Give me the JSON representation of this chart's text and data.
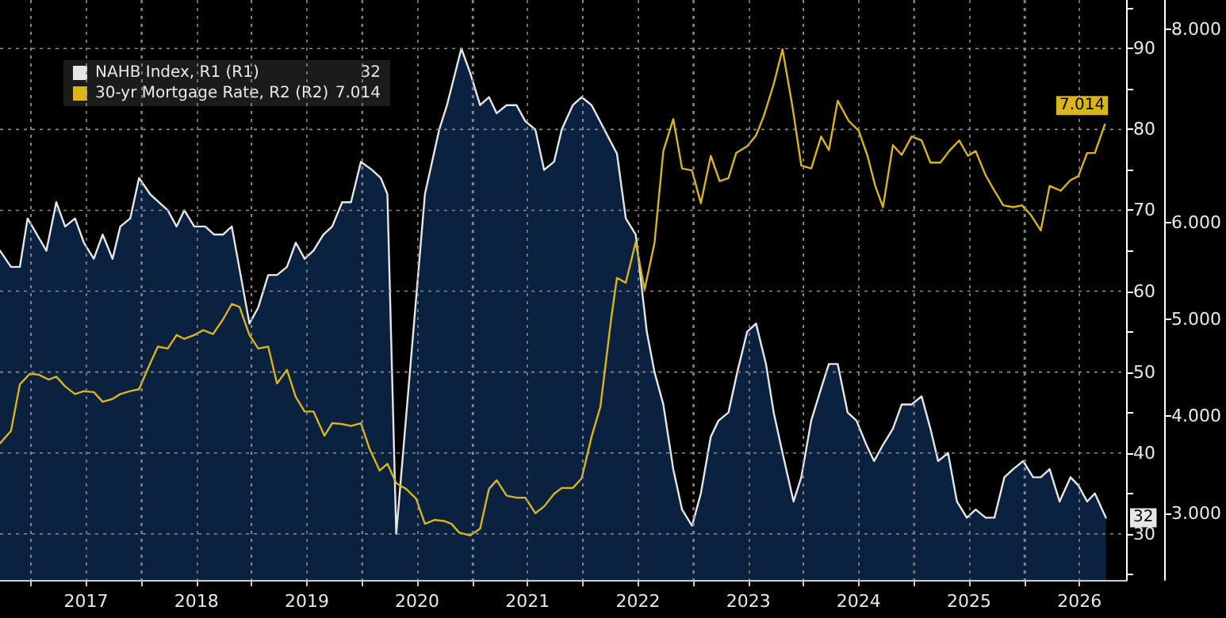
{
  "chart_data": {
    "type": "line",
    "legend": "top left",
    "grid": true,
    "marker": "none",
    "line_style": "solid",
    "xlim": [
      2016.72,
      2026.93
    ],
    "xticks": [
      {
        "value": 2017,
        "label": null
      },
      {
        "value": 2017.5,
        "label": "2017"
      },
      {
        "value": 2018,
        "label": null
      },
      {
        "value": 2018.5,
        "label": "2018"
      },
      {
        "value": 2019,
        "label": null
      },
      {
        "value": 2019.5,
        "label": "2019"
      },
      {
        "value": 2020,
        "label": null
      },
      {
        "value": 2020.5,
        "label": "2020"
      },
      {
        "value": 2021,
        "label": null
      },
      {
        "value": 2021.5,
        "label": "2021"
      },
      {
        "value": 2022,
        "label": null
      },
      {
        "value": 2022.5,
        "label": "2022"
      },
      {
        "value": 2023,
        "label": null
      },
      {
        "value": 2023.5,
        "label": "2023"
      },
      {
        "value": 2024,
        "label": null
      },
      {
        "value": 2024.5,
        "label": "2024"
      },
      {
        "value": 2025,
        "label": null
      },
      {
        "value": 2025.5,
        "label": "2025"
      },
      {
        "value": 2026,
        "label": null
      },
      {
        "value": 2026.5,
        "label": "2026"
      }
    ],
    "ylim": [
      24.3,
      96
    ],
    "yticks": [
      {
        "value": 25,
        "label": null
      },
      30,
      {
        "value": 35,
        "label": null
      },
      40,
      {
        "value": 45,
        "label": null
      },
      50,
      {
        "value": 55,
        "label": null
      },
      60,
      {
        "value": 65,
        "label": null
      },
      70,
      {
        "value": 75,
        "label": null
      },
      80,
      {
        "value": 85,
        "label": null
      },
      90,
      {
        "value": 95,
        "label": null
      }
    ],
    "y2lim": [
      2.31,
      8.3
    ],
    "y2ticks": [
      {
        "value": 3,
        "label": "3.000"
      },
      {
        "value": 4,
        "label": "4.000"
      },
      {
        "value": 5,
        "label": "5.000"
      },
      {
        "value": 6,
        "label": "6.000"
      },
      {
        "value": 8,
        "label": "8.000"
      }
    ],
    "series": [
      {
        "name": "NAHB Index, R1 (R1)",
        "type": "area",
        "color": "#e6e6e6",
        "value_labels": [
          null,
          null,
          null,
          null,
          null,
          null,
          null,
          null,
          null,
          null,
          null,
          null,
          null,
          null,
          null,
          null,
          null,
          null,
          null,
          null,
          null,
          null,
          null,
          null,
          null,
          null,
          null,
          null,
          null,
          null,
          null,
          null,
          null,
          null,
          null,
          null,
          null,
          null,
          null,
          null,
          null,
          null,
          null,
          null,
          null,
          null,
          null,
          null,
          null,
          null,
          null,
          null,
          null,
          null,
          null,
          null,
          null,
          null,
          null,
          null,
          null,
          null,
          null,
          null,
          null,
          null,
          null,
          null,
          null,
          null,
          null,
          null,
          null,
          null,
          null,
          null,
          null,
          null,
          null,
          null,
          null,
          null,
          null,
          null,
          null,
          null,
          null,
          null,
          null,
          null,
          null,
          null,
          null,
          null,
          null,
          null,
          null,
          null,
          null,
          null,
          null,
          null,
          null,
          null,
          null,
          null,
          null,
          null,
          null,
          null,
          null,
          null,
          "32"
        ],
        "x": [
          2016.72,
          2016.82,
          2016.9,
          2016.97,
          2017.14,
          2017.23,
          2017.31,
          2017.4,
          2017.48,
          2017.57,
          2017.65,
          2017.74,
          2017.81,
          2017.9,
          2017.98,
          2018.08,
          2018.24,
          2018.32,
          2018.39,
          2018.48,
          2018.58,
          2018.66,
          2018.74,
          2018.82,
          2018.98,
          2019.06,
          2019.15,
          2019.23,
          2019.32,
          2019.4,
          2019.48,
          2019.56,
          2019.65,
          2019.73,
          2019.82,
          2019.9,
          2019.99,
          2020.09,
          2020.17,
          2020.23,
          2020.31,
          2020.57,
          2020.7,
          2020.77,
          2020.9,
          2020.98,
          2021.07,
          2021.15,
          2021.22,
          2021.31,
          2021.4,
          2021.48,
          2021.57,
          2021.65,
          2021.74,
          2021.81,
          2021.91,
          2021.99,
          2022.08,
          2022.31,
          2022.39,
          2022.48,
          2022.58,
          2022.65,
          2022.73,
          2022.82,
          2022.9,
          2022.99,
          2023.07,
          2023.16,
          2023.23,
          2023.32,
          2023.4,
          2023.49,
          2023.57,
          2023.66,
          2023.73,
          2023.81,
          2023.91,
          2023.98,
          2024.07,
          2024.16,
          2024.23,
          2024.31,
          2024.4,
          2024.48,
          2024.57,
          2024.64,
          2024.72,
          2024.81,
          2024.89,
          2024.98,
          2025.07,
          2025.15,
          2025.22,
          2025.31,
          2025.39,
          2025.48,
          2025.56,
          2025.65,
          2025.73,
          2025.82,
          2025.9,
          2025.99,
          2026.08,
          2026.15,
          2026.23,
          2026.32,
          2026.42,
          2026.49,
          2026.57,
          2026.64,
          2026.74
        ],
        "values": [
          65,
          63,
          63,
          69,
          65,
          71,
          68,
          69,
          66,
          64,
          67,
          64,
          68,
          69,
          74,
          72,
          70,
          68,
          70,
          68,
          68,
          67,
          67,
          68,
          56,
          58,
          62,
          62,
          63,
          66,
          64,
          65,
          67,
          68,
          71,
          71,
          76,
          75,
          74,
          72,
          30,
          72,
          80,
          83,
          90,
          87,
          83,
          84,
          82,
          83,
          83,
          81,
          80,
          75,
          76,
          80,
          83,
          84,
          83,
          77,
          69,
          67,
          55,
          50,
          46,
          38,
          33,
          31,
          35,
          42,
          44,
          45,
          50,
          55,
          56,
          51,
          45,
          40,
          34,
          37,
          44,
          48,
          51,
          51,
          45,
          44,
          41,
          39,
          41,
          43,
          46,
          46,
          47,
          43,
          39,
          40,
          34,
          32,
          33,
          32,
          32,
          37,
          38,
          39,
          37,
          37,
          38,
          34,
          37,
          36,
          34,
          35,
          32
        ]
      },
      {
        "name": "30-yr Mortgage Rate, R2 (R2)",
        "axis": "y2",
        "color": "#d9b51c",
        "value_labels": [
          null,
          null,
          null,
          null,
          null,
          null,
          null,
          null,
          null,
          null,
          null,
          null,
          null,
          null,
          null,
          null,
          null,
          null,
          null,
          null,
          null,
          null,
          null,
          null,
          null,
          null,
          null,
          null,
          null,
          null,
          null,
          null,
          null,
          null,
          null,
          null,
          null,
          null,
          null,
          null,
          null,
          null,
          null,
          null,
          null,
          null,
          null,
          null,
          null,
          null,
          null,
          null,
          null,
          null,
          null,
          null,
          null,
          null,
          null,
          null,
          null,
          null,
          null,
          null,
          null,
          null,
          null,
          null,
          null,
          null,
          null,
          null,
          null,
          null,
          null,
          null,
          null,
          null,
          null,
          null,
          null,
          null,
          null,
          null,
          null,
          null,
          null,
          null,
          null,
          null,
          null,
          null,
          null,
          null,
          null,
          null,
          null,
          null,
          null,
          null,
          null,
          null,
          null,
          null,
          null,
          null,
          null,
          null,
          null,
          null,
          null,
          null,
          null,
          null,
          null,
          null,
          null,
          null,
          null,
          null,
          "7.014"
        ],
        "x": [
          2016.72,
          2016.82,
          2016.9,
          2016.99,
          2017.07,
          2017.16,
          2017.23,
          2017.31,
          2017.4,
          2017.48,
          2017.57,
          2017.65,
          2017.74,
          2017.81,
          2017.9,
          2017.98,
          2018.07,
          2018.15,
          2018.24,
          2018.32,
          2018.39,
          2018.48,
          2018.56,
          2018.65,
          2018.74,
          2018.82,
          2018.89,
          2018.98,
          2019.06,
          2019.15,
          2019.23,
          2019.32,
          2019.4,
          2019.48,
          2019.56,
          2019.66,
          2019.73,
          2019.82,
          2019.9,
          2019.99,
          2020.07,
          2020.16,
          2020.23,
          2020.31,
          2020.4,
          2020.49,
          2020.57,
          2020.66,
          2020.74,
          2020.81,
          2020.88,
          2020.98,
          2021.07,
          2021.15,
          2021.22,
          2021.31,
          2021.4,
          2021.48,
          2021.57,
          2021.65,
          2021.74,
          2021.81,
          2021.91,
          2021.99,
          2022.08,
          2022.16,
          2022.26,
          2022.31,
          2022.39,
          2022.48,
          2022.56,
          2022.65,
          2022.73,
          2022.82,
          2022.9,
          2022.99,
          2023.07,
          2023.16,
          2023.24,
          2023.32,
          2023.39,
          2023.49,
          2023.57,
          2023.64,
          2023.73,
          2023.81,
          2023.9,
          2023.98,
          2024.07,
          2024.16,
          2024.23,
          2024.31,
          2024.41,
          2024.5,
          2024.58,
          2024.65,
          2024.72,
          2024.81,
          2024.89,
          2024.98,
          2025.07,
          2025.15,
          2025.24,
          2025.32,
          2025.41,
          2025.49,
          2025.56,
          2025.65,
          2025.73,
          2025.81,
          2025.9,
          2025.98,
          2026.06,
          2026.15,
          2026.23,
          2026.33,
          2026.42,
          2026.49,
          2026.57,
          2026.64,
          2026.73
        ],
        "values": [
          3.72,
          3.85,
          4.33,
          4.44,
          4.43,
          4.38,
          4.41,
          4.31,
          4.23,
          4.26,
          4.25,
          4.15,
          4.18,
          4.23,
          4.26,
          4.28,
          4.52,
          4.72,
          4.7,
          4.84,
          4.8,
          4.84,
          4.89,
          4.85,
          5.0,
          5.16,
          5.13,
          4.84,
          4.7,
          4.72,
          4.34,
          4.48,
          4.2,
          4.05,
          4.05,
          3.8,
          3.93,
          3.92,
          3.9,
          3.93,
          3.66,
          3.44,
          3.51,
          3.31,
          3.25,
          3.15,
          2.89,
          2.93,
          2.92,
          2.89,
          2.8,
          2.77,
          2.84,
          3.25,
          3.34,
          3.18,
          3.16,
          3.16,
          3.0,
          3.07,
          3.2,
          3.26,
          3.26,
          3.36,
          3.79,
          4.1,
          5.03,
          5.43,
          5.38,
          5.8,
          5.31,
          5.79,
          6.74,
          7.07,
          6.56,
          6.54,
          6.2,
          6.69,
          6.43,
          6.46,
          6.72,
          6.79,
          6.9,
          7.1,
          7.43,
          7.79,
          7.2,
          6.59,
          6.56,
          6.89,
          6.75,
          7.26,
          7.05,
          6.95,
          6.69,
          6.38,
          6.16,
          6.8,
          6.7,
          6.89,
          6.85,
          6.62,
          6.62,
          6.74,
          6.85,
          6.69,
          6.74,
          6.49,
          6.33,
          6.18,
          6.16,
          6.18,
          6.08,
          5.92,
          6.38,
          6.33,
          6.44,
          6.48,
          6.72,
          6.72,
          7.014
        ]
      }
    ]
  }
}
